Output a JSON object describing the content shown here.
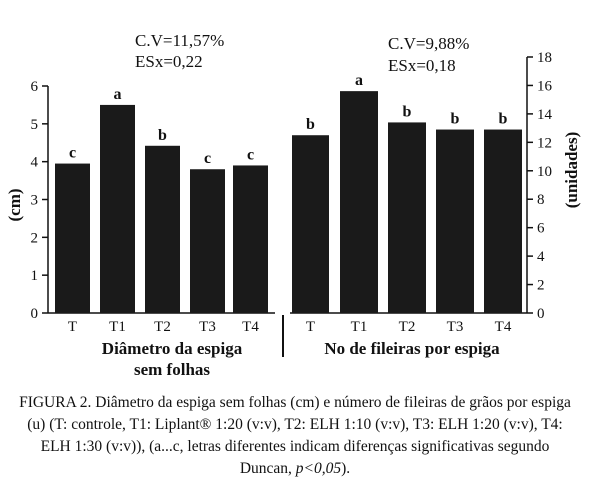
{
  "chart_data": [
    {
      "type": "bar",
      "categories": [
        "T",
        "T1",
        "T2",
        "T3",
        "T4"
      ],
      "values": [
        3.95,
        5.5,
        4.42,
        3.8,
        3.9
      ],
      "letters": [
        "c",
        "a",
        "b",
        "c",
        "c"
      ],
      "ylabel": "(cm)",
      "ylim": [
        0,
        6
      ],
      "yticks": [
        "0",
        "1",
        "2",
        "3",
        "4",
        "5",
        "6"
      ],
      "cv": "C.V=11,57%",
      "esx": "ESx=0,22",
      "title": "Diâmetro da espiga sem folhas",
      "title_line1": "Diâmetro da espiga",
      "title_line2": "sem folhas",
      "bar_color": "#1a1a1a"
    },
    {
      "type": "bar",
      "categories": [
        "T",
        "T1",
        "T2",
        "T3",
        "T4"
      ],
      "values": [
        12.5,
        15.6,
        13.4,
        12.9,
        12.9
      ],
      "letters": [
        "b",
        "a",
        "b",
        "b",
        "b"
      ],
      "ylabel": "(unidades)",
      "ylim": [
        0,
        18
      ],
      "yticks": [
        "0",
        "2",
        "4",
        "6",
        "8",
        "10",
        "12",
        "14",
        "16",
        "18"
      ],
      "cv": "C.V=9,88%",
      "esx": "ESx=0,18",
      "title": "No de fileiras por espiga",
      "bar_color": "#1a1a1a"
    }
  ],
  "caption": {
    "prefix": "FIGURA 2. Diâmetro da espiga sem folhas (cm) e número de fileiras de grãos por espiga (u) (T: controle, T1: Liplant® 1:20 (v:v), T2: ELH 1:10 (v:v), T3: ELH 1:20 (v:v), T4: ELH 1:30 (v:v)), (a...c, letras diferentes indicam diferenças significativas segundo Duncan, ",
    "pvalue": "p<0,05",
    "suffix": ")."
  }
}
